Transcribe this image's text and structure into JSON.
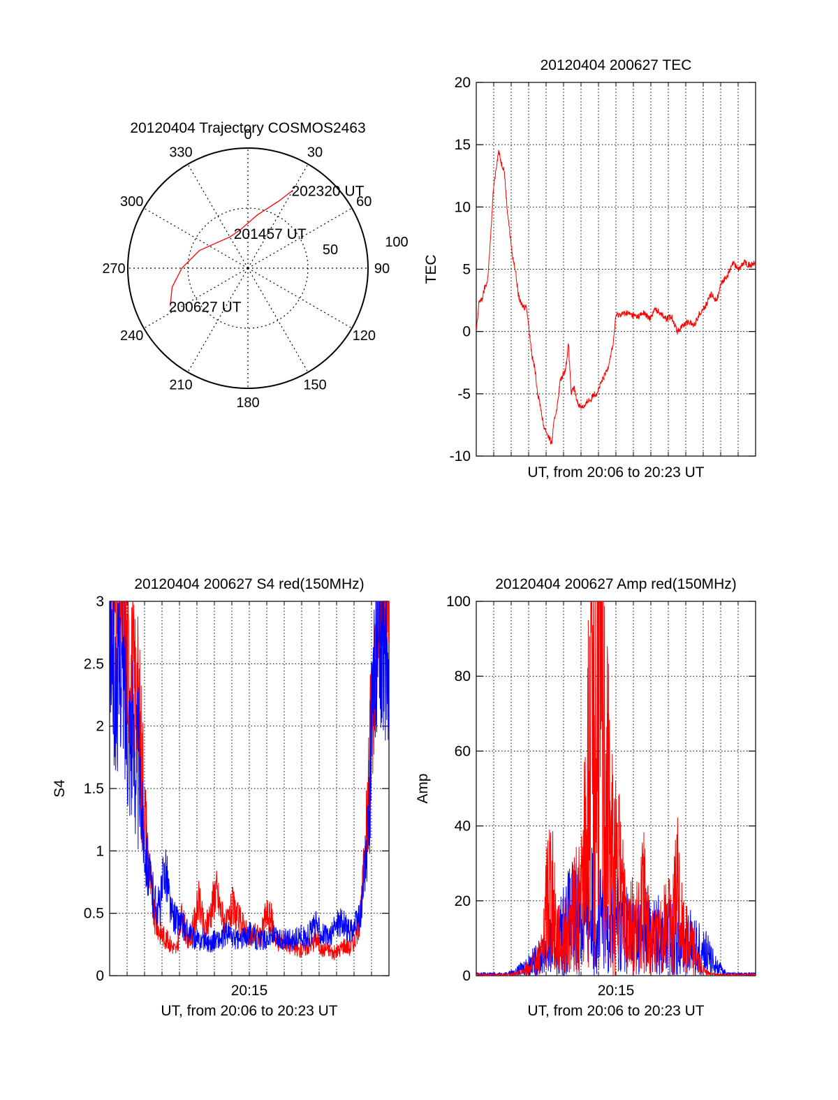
{
  "colors": {
    "red": "#ff0000",
    "blue": "#0000ff",
    "axis": "#000000",
    "grid": "#000000"
  },
  "chart_data": [
    {
      "id": "trajectory",
      "type": "polar",
      "title": "20120404 Trajectory COSMOS2463",
      "angle_labels": [
        "0",
        "30",
        "60",
        "90",
        "120",
        "150",
        "180",
        "210",
        "240",
        "270",
        "300",
        "330"
      ],
      "radial_labels": [
        "50",
        "100"
      ],
      "radial_max": 100,
      "series": [
        {
          "color": "red",
          "points": [
            [
              244,
              72
            ],
            [
              256,
              65
            ],
            [
              270,
              55
            ],
            [
              290,
              43
            ],
            [
              315,
              32
            ],
            [
              330,
              30
            ],
            [
              350,
              33
            ],
            [
              10,
              45
            ],
            [
              25,
              62
            ],
            [
              30,
              75
            ]
          ]
        }
      ],
      "annotations": [
        {
          "text": "200627 UT",
          "at": [
            244,
            72
          ]
        },
        {
          "text": "201457 UT",
          "at": [
            340,
            31
          ]
        },
        {
          "text": "202320 UT",
          "at": [
            30,
            75
          ]
        }
      ]
    },
    {
      "id": "tec",
      "type": "line",
      "title": "20120404 200627 TEC",
      "xlabel": "UT, from 20:06 to 20:23 UT",
      "ylabel": "TEC",
      "ylim": [
        -10,
        20
      ],
      "yticks": [
        "-10",
        "-5",
        "0",
        "5",
        "10",
        "15",
        "20"
      ],
      "xlim": [
        0,
        1000
      ],
      "grid": true,
      "series": [
        {
          "color": "red",
          "x": [
            0,
            5,
            10,
            20,
            30,
            40,
            50,
            60,
            70,
            80,
            90,
            100,
            110,
            120,
            130,
            140,
            150,
            160,
            170,
            180,
            190,
            200,
            210,
            220,
            230,
            240,
            250,
            260,
            270,
            280,
            290,
            300,
            310,
            320,
            330,
            340,
            350,
            360,
            370,
            380,
            390,
            400,
            410,
            420,
            430,
            440,
            450,
            460,
            470,
            480,
            490,
            500,
            520,
            540,
            560,
            580,
            600,
            620,
            640,
            660,
            680,
            700,
            720,
            740,
            760,
            780,
            800,
            820,
            840,
            860,
            880,
            900,
            920,
            940,
            960,
            980,
            1000
          ],
          "y": [
            0,
            1,
            2.5,
            2.5,
            3.5,
            4,
            7,
            11,
            13,
            14.5,
            13.5,
            13,
            10,
            8,
            6,
            5,
            3,
            2.2,
            2,
            2,
            0,
            -2,
            -3,
            -5,
            -6,
            -7.5,
            -8,
            -8.5,
            -9,
            -7,
            -6,
            -4,
            -3.5,
            -3,
            -1,
            -5,
            -4.5,
            -5.5,
            -6,
            -6,
            -6,
            -5.5,
            -5.5,
            -5,
            -5,
            -4.5,
            -4,
            -3.5,
            -3,
            -2,
            -1,
            1.3,
            1.4,
            1.5,
            1.3,
            1.2,
            1.5,
            1,
            1.8,
            1.5,
            1,
            1.2,
            0,
            0.5,
            0.8,
            0.5,
            1.5,
            2,
            3,
            2.5,
            4,
            4.5,
            5.5,
            5,
            5.6,
            5.3,
            5.5
          ]
        }
      ]
    },
    {
      "id": "s4",
      "type": "line",
      "title": "20120404 200627 S4 red(150MHz)",
      "xlabel": "UT, from 20:06 to 20:23 UT",
      "ylabel": "S4",
      "ylim": [
        0,
        3
      ],
      "yticks": [
        "0",
        "0.5",
        "1",
        "1.5",
        "2",
        "2.5",
        "3"
      ],
      "xticks": [
        "20:15"
      ],
      "xlim": [
        0,
        1000
      ],
      "grid": true,
      "series": [
        {
          "color": "red",
          "x": [
            0,
            20,
            40,
            60,
            80,
            100,
            120,
            140,
            160,
            180,
            200,
            220,
            240,
            260,
            280,
            300,
            320,
            340,
            360,
            380,
            400,
            420,
            440,
            460,
            480,
            500,
            520,
            540,
            560,
            580,
            600,
            620,
            640,
            660,
            680,
            700,
            720,
            740,
            760,
            780,
            800,
            820,
            840,
            860,
            880,
            900,
            920,
            940,
            960,
            980,
            1000
          ],
          "y": [
            3,
            3,
            3,
            2.6,
            2.4,
            2.3,
            1.5,
            0.9,
            0.45,
            0.35,
            0.3,
            0.25,
            0.2,
            0.5,
            0.25,
            0.4,
            0.6,
            0.35,
            0.5,
            0.7,
            0.5,
            0.4,
            0.55,
            0.45,
            0.4,
            0.3,
            0.35,
            0.3,
            0.5,
            0.45,
            0.25,
            0.3,
            0.25,
            0.22,
            0.2,
            0.22,
            0.25,
            0.3,
            0.2,
            0.22,
            0.18,
            0.2,
            0.25,
            0.22,
            0.3,
            0.5,
            1.2,
            2.2,
            3,
            3,
            3
          ]
        },
        {
          "color": "blue",
          "x": [
            0,
            20,
            40,
            60,
            80,
            100,
            120,
            140,
            160,
            180,
            200,
            220,
            240,
            260,
            280,
            300,
            320,
            340,
            360,
            380,
            400,
            420,
            440,
            460,
            480,
            500,
            520,
            540,
            560,
            580,
            600,
            620,
            640,
            660,
            680,
            700,
            720,
            740,
            760,
            780,
            800,
            820,
            840,
            860,
            880,
            900,
            920,
            940,
            960,
            980,
            1000
          ],
          "y": [
            2.8,
            2.2,
            2.5,
            2.1,
            1.9,
            1.7,
            1.2,
            0.8,
            0.6,
            0.55,
            0.9,
            0.5,
            0.45,
            0.4,
            0.35,
            0.3,
            0.28,
            0.3,
            0.25,
            0.3,
            0.28,
            0.35,
            0.3,
            0.28,
            0.3,
            0.35,
            0.3,
            0.28,
            0.3,
            0.32,
            0.3,
            0.28,
            0.3,
            0.28,
            0.32,
            0.3,
            0.35,
            0.4,
            0.35,
            0.3,
            0.35,
            0.45,
            0.4,
            0.35,
            0.4,
            0.5,
            1.0,
            2.0,
            2.7,
            2.6,
            2.5
          ]
        }
      ]
    },
    {
      "id": "amp",
      "type": "line",
      "title": "20120404 200627 Amp red(150MHz)",
      "xlabel": "UT, from 20:06 to 20:23 UT",
      "ylabel": "Amp",
      "ylim": [
        0,
        100
      ],
      "yticks": [
        "0",
        "20",
        "40",
        "60",
        "80",
        "100"
      ],
      "xticks": [
        "20:15"
      ],
      "xlim": [
        0,
        1000
      ],
      "grid": true,
      "series": [
        {
          "color": "blue",
          "x": [
            0,
            50,
            100,
            120,
            140,
            160,
            180,
            200,
            220,
            240,
            260,
            280,
            300,
            320,
            340,
            360,
            380,
            400,
            420,
            440,
            460,
            480,
            500,
            520,
            540,
            560,
            580,
            600,
            620,
            640,
            660,
            680,
            700,
            720,
            740,
            760,
            780,
            800,
            820,
            840,
            860,
            880,
            900,
            950,
            1000
          ],
          "y": [
            0.5,
            0.5,
            0.5,
            0.8,
            1,
            2,
            3,
            4,
            5,
            6,
            8,
            10,
            12,
            15,
            17,
            18,
            16,
            18,
            20,
            17,
            15,
            16,
            18,
            15,
            14,
            13,
            12,
            14,
            12,
            13,
            12,
            11,
            12,
            10,
            9,
            11,
            9,
            8,
            7,
            5,
            3,
            1.5,
            0.5,
            0.5,
            0.5
          ]
        },
        {
          "color": "red",
          "x": [
            0,
            50,
            100,
            120,
            140,
            160,
            180,
            200,
            220,
            240,
            260,
            280,
            300,
            320,
            340,
            360,
            380,
            400,
            420,
            440,
            460,
            480,
            500,
            520,
            540,
            560,
            580,
            600,
            620,
            640,
            660,
            680,
            700,
            720,
            740,
            760,
            780,
            800,
            820,
            840,
            860,
            880,
            900,
            950,
            1000
          ],
          "y": [
            0.3,
            0.3,
            0.3,
            0.4,
            0.5,
            1,
            2,
            3,
            5,
            8,
            30,
            18,
            10,
            12,
            15,
            20,
            22,
            55,
            65,
            87,
            63,
            40,
            30,
            25,
            20,
            15,
            14,
            22,
            12,
            10,
            12,
            15,
            14,
            25,
            12,
            10,
            8,
            3,
            1,
            0.5,
            0.3,
            0.3,
            0.3,
            0.3,
            0.3
          ]
        }
      ]
    }
  ]
}
